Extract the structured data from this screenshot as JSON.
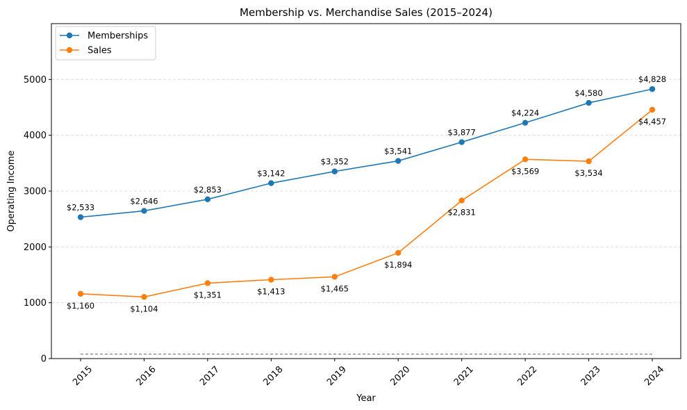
{
  "chart_data": {
    "type": "line",
    "title": "Membership vs. Merchandise Sales (2015–2024)",
    "xlabel": "Year",
    "ylabel": "Operating Income",
    "categories": [
      "2015",
      "2016",
      "2017",
      "2018",
      "2019",
      "2020",
      "2021",
      "2022",
      "2023",
      "2024"
    ],
    "ylim": [
      0,
      6000
    ],
    "yticks": [
      0,
      1000,
      2000,
      3000,
      4000,
      5000
    ],
    "grid": "y-dashed",
    "legend_position": "top-left",
    "baseline_value": 80,
    "series": [
      {
        "name": "Memberships",
        "color": "#1f77b4",
        "values": [
          2533,
          2646,
          2853,
          3142,
          3352,
          3541,
          3877,
          4224,
          4580,
          4828
        ],
        "labels": [
          "$2,533",
          "$2,646",
          "$2,853",
          "$3,142",
          "$3,352",
          "$3,541",
          "$3,877",
          "$4,224",
          "$4,580",
          "$4,828"
        ],
        "label_position": "above"
      },
      {
        "name": "Sales",
        "color": "#ff7f0e",
        "values": [
          1160,
          1104,
          1351,
          1413,
          1465,
          1894,
          2831,
          3569,
          3534,
          4457
        ],
        "labels": [
          "$1,160",
          "$1,104",
          "$1,351",
          "$1,413",
          "$1,465",
          "$1,894",
          "$2,831",
          "$3,569",
          "$3,534",
          "$4,457"
        ],
        "label_position": "below"
      }
    ]
  }
}
